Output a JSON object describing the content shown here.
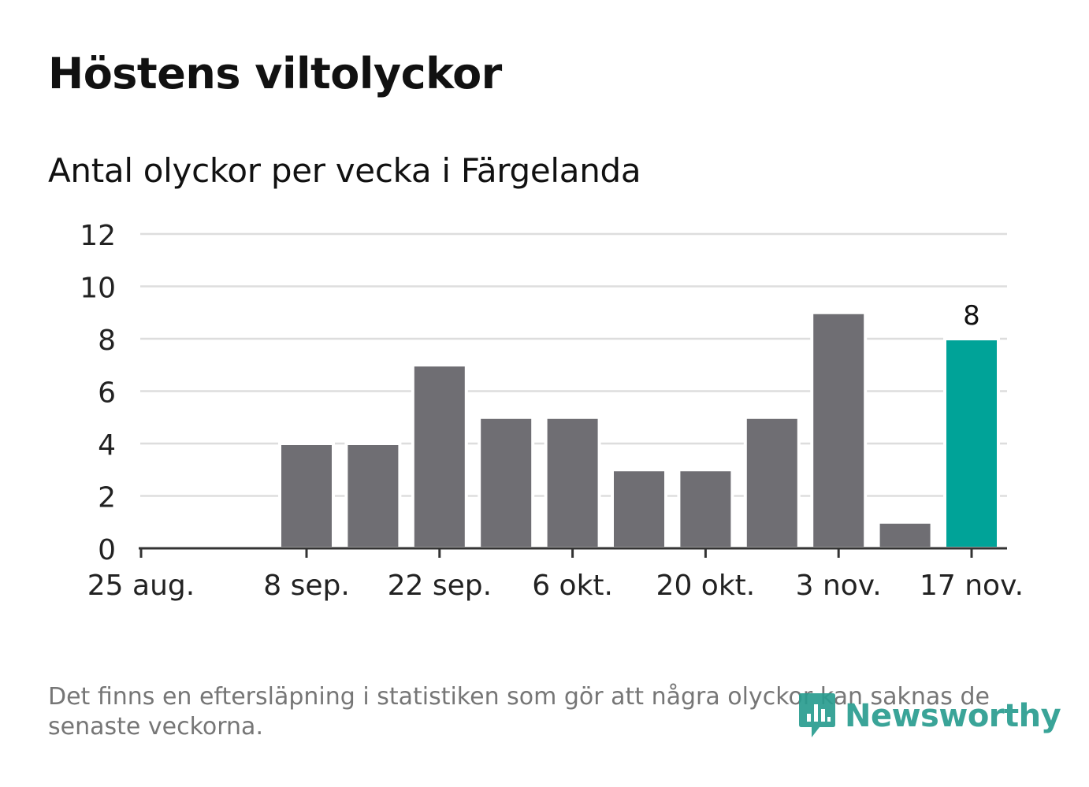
{
  "chart_data": {
    "type": "bar",
    "title": "Höstens viltolyckor",
    "subtitle": "Antal olyckor per vecka i Färgelanda",
    "x": [
      "2024-08-25",
      "2024-09-01",
      "2024-09-08",
      "2024-09-15",
      "2024-09-22",
      "2024-09-29",
      "2024-10-06",
      "2024-10-13",
      "2024-10-20",
      "2024-10-27",
      "2024-11-03",
      "2024-11-10",
      "2024-11-17"
    ],
    "values": [
      0,
      0,
      4,
      4,
      7,
      5,
      5,
      3,
      3,
      5,
      9,
      1,
      8
    ],
    "x_ticks": [
      {
        "x": "2024-08-25",
        "label": "25 aug."
      },
      {
        "x": "2024-09-08",
        "label": "8 sep."
      },
      {
        "x": "2024-09-22",
        "label": "22 sep."
      },
      {
        "x": "2024-10-06",
        "label": "6 okt."
      },
      {
        "x": "2024-10-20",
        "label": "20 okt."
      },
      {
        "x": "2024-11-03",
        "label": "3 nov."
      },
      {
        "x": "2024-11-17",
        "label": "17 nov."
      }
    ],
    "y_ticks": [
      0,
      2,
      4,
      6,
      8,
      10,
      12
    ],
    "ylim": [
      0,
      12
    ],
    "highlight": {
      "x": "2024-11-17",
      "value": 8,
      "label": "8"
    },
    "xlabel": "",
    "ylabel": "",
    "grid": true,
    "colors": {
      "bar": "#6f6e73",
      "highlight": "#00a398",
      "grid": "#dddddd",
      "axis": "#333333"
    }
  },
  "footnote": "Det finns en eftersläpning i statistiken som gör att några olyckor kan saknas de senaste veckorna.",
  "logo": {
    "text": "Newsworthy",
    "icon": "newsworthy-logo-icon",
    "color": "#2a9d90"
  }
}
